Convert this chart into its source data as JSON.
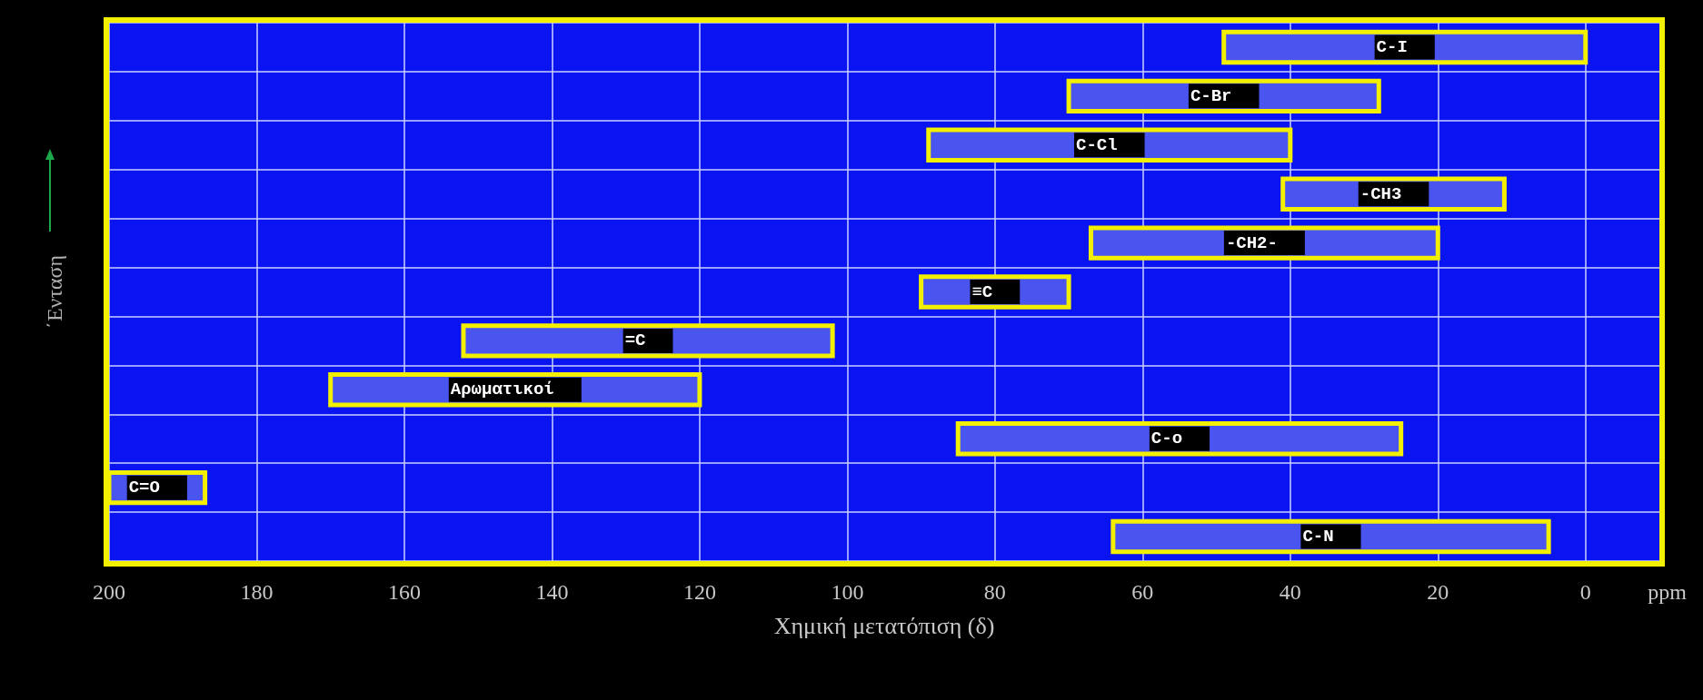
{
  "chart_data": {
    "type": "bar",
    "orientation": "horizontal",
    "categories": [
      "C-I",
      "C-Br",
      "C-Cl",
      "-CH3",
      "-CH2-",
      "≡C",
      "=C",
      "Αρωματικοί",
      "C-o",
      "C=O",
      "C-N"
    ],
    "base": [
      0,
      28,
      40,
      11,
      20,
      70,
      102,
      120,
      25,
      187,
      5
    ],
    "values": [
      49,
      42,
      49,
      30,
      47,
      20,
      50,
      50,
      60,
      13,
      59
    ],
    "color": "#4a55f0",
    "xlim": [
      200,
      -10
    ],
    "xticks": [
      200,
      180,
      160,
      140,
      120,
      100,
      80,
      60,
      40,
      20,
      0
    ],
    "xlabel": "Χημική μετατόπιση (δ)",
    "ylabel": "΄Ενταση",
    "annotations": [
      "ppm"
    ],
    "grid": true,
    "tick_labels": "x"
  }
}
